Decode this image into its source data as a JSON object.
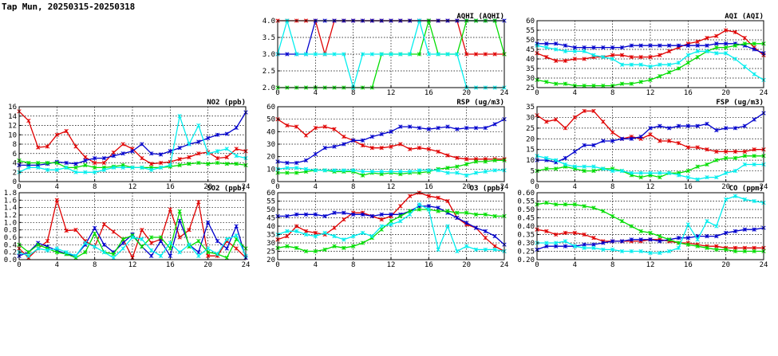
{
  "title": "Tap Mun, 20250315-20250318",
  "colors": {
    "red": "#e00000",
    "blue": "#0000cc",
    "green": "#00dd00",
    "cyan": "#00eeee"
  },
  "chart_data": [
    {
      "type": "line",
      "id": "no2",
      "title": "NO2 (ppb)",
      "xlim": [
        0,
        24
      ],
      "xticks": [
        0,
        4,
        8,
        12,
        16,
        20,
        24
      ],
      "ylim": [
        0,
        16
      ],
      "yticks": [
        0,
        2,
        4,
        6,
        8,
        10,
        12,
        14,
        16
      ],
      "grid": true,
      "series": [
        {
          "color": "red",
          "values": [
            15.0,
            13.0,
            7.3,
            7.5,
            10.0,
            10.8,
            7.5,
            5.2,
            4.0,
            4.0,
            6.2,
            8.0,
            7.0,
            5.0,
            3.8,
            4.0,
            4.2,
            4.8,
            5.2,
            6.0,
            6.3,
            5.0,
            5.2,
            7.0,
            6.5
          ]
        },
        {
          "color": "blue",
          "values": [
            3.5,
            3.5,
            3.5,
            3.8,
            4.2,
            4.0,
            3.8,
            4.5,
            5.0,
            5.0,
            5.5,
            6.0,
            6.5,
            8.0,
            6.0,
            5.8,
            6.5,
            7.2,
            8.0,
            8.5,
            9.3,
            10.0,
            10.2,
            11.5,
            14.8
          ]
        },
        {
          "color": "green",
          "values": [
            4.5,
            4.0,
            4.0,
            4.0,
            4.0,
            3.0,
            3.0,
            3.5,
            3.0,
            3.0,
            3.2,
            3.5,
            3.0,
            3.0,
            3.0,
            3.0,
            3.2,
            3.5,
            3.8,
            4.0,
            3.8,
            4.0,
            3.8,
            3.8,
            3.5
          ]
        },
        {
          "color": "cyan",
          "values": [
            2.0,
            3.0,
            3.0,
            2.5,
            2.5,
            3.0,
            2.0,
            2.0,
            2.0,
            2.5,
            3.0,
            3.0,
            3.0,
            3.0,
            2.5,
            3.0,
            3.5,
            14.0,
            8.0,
            12.0,
            6.0,
            6.5,
            7.0,
            5.5,
            5.0
          ]
        }
      ]
    },
    {
      "type": "line",
      "id": "so2",
      "title": "SO2 (ppb)",
      "xlim": [
        0,
        24
      ],
      "xticks": [
        0,
        4,
        8,
        12,
        16,
        20,
        24
      ],
      "ylim": [
        0,
        1.8
      ],
      "yticks": [
        0,
        0.2,
        0.4,
        0.6,
        0.8,
        1.0,
        1.2,
        1.4,
        1.6,
        1.8
      ],
      "grid": true,
      "series": [
        {
          "color": "red",
          "values": [
            0.3,
            0.05,
            0.3,
            0.5,
            1.6,
            0.78,
            0.8,
            0.5,
            0.35,
            0.95,
            0.75,
            0.55,
            0.05,
            0.8,
            0.45,
            0.55,
            1.35,
            0.6,
            0.8,
            1.55,
            0.1,
            0.1,
            0.5,
            0.3,
            0.05
          ]
        },
        {
          "color": "blue",
          "values": [
            0.1,
            0.2,
            0.45,
            0.35,
            0.25,
            0.15,
            0.1,
            0.4,
            0.85,
            0.4,
            0.2,
            0.45,
            0.68,
            0.35,
            0.1,
            0.5,
            0.1,
            1.05,
            0.4,
            0.2,
            1.0,
            0.5,
            0.3,
            0.9,
            0.05
          ]
        },
        {
          "color": "green",
          "values": [
            0.4,
            0.2,
            0.4,
            0.3,
            0.2,
            0.15,
            0.05,
            0.2,
            0.7,
            0.2,
            0.15,
            0.55,
            0.65,
            0.35,
            0.6,
            0.6,
            0.3,
            1.3,
            0.35,
            0.5,
            0.2,
            0.15,
            0.05,
            0.55,
            0.3
          ]
        },
        {
          "color": "cyan",
          "values": [
            0.2,
            0.1,
            0.3,
            0.25,
            0.3,
            0.2,
            0.1,
            0.45,
            0.35,
            0.2,
            0.05,
            0.3,
            0.6,
            0.55,
            0.25,
            0.1,
            0.45,
            0.2,
            0.4,
            0.1,
            0.3,
            0.15,
            0.55,
            0.65,
            0.1
          ]
        }
      ]
    },
    {
      "type": "line",
      "id": "aqhi",
      "title": "AQHI (AQHI)",
      "xlim": [
        0,
        24
      ],
      "xticks": [
        0,
        4,
        8,
        12,
        16,
        20,
        24
      ],
      "ylim": [
        2,
        4
      ],
      "yticks": [
        2.0,
        2.5,
        3.0,
        3.5,
        4.0
      ],
      "grid": true,
      "series": [
        {
          "color": "red",
          "values": [
            4,
            4,
            4,
            4,
            4,
            3,
            4,
            4,
            4,
            4,
            4,
            4,
            4,
            4,
            4,
            4,
            4,
            4,
            4,
            4,
            3,
            3,
            3,
            3,
            3
          ]
        },
        {
          "color": "blue",
          "values": [
            3,
            3,
            3,
            3,
            4,
            4,
            4,
            4,
            4,
            4,
            4,
            4,
            4,
            4,
            4,
            4,
            4,
            4,
            4,
            4,
            4,
            4,
            4,
            4,
            4
          ]
        },
        {
          "color": "green",
          "values": [
            2,
            2,
            2,
            2,
            2,
            2,
            2,
            2,
            2,
            2,
            2,
            3,
            3,
            3,
            3,
            3,
            4,
            3,
            3,
            3,
            4,
            4,
            4,
            4,
            3
          ]
        },
        {
          "color": "cyan",
          "values": [
            3,
            4,
            3,
            3,
            3,
            3,
            3,
            3,
            2,
            3,
            3,
            3,
            3,
            3,
            3,
            4,
            3,
            3,
            3,
            3,
            2,
            2,
            2,
            2,
            2
          ]
        }
      ]
    },
    {
      "type": "line",
      "id": "rsp",
      "title": "RSP (ug/m3)",
      "xlim": [
        0,
        24
      ],
      "xticks": [
        0,
        4,
        8,
        12,
        16,
        20,
        24
      ],
      "ylim": [
        0,
        60
      ],
      "yticks": [
        0,
        10,
        20,
        30,
        40,
        50,
        60
      ],
      "grid": true,
      "series": [
        {
          "color": "red",
          "values": [
            50,
            45,
            44,
            37,
            43,
            44,
            42,
            36,
            33,
            29,
            27,
            27,
            28,
            30,
            26,
            27,
            26,
            24,
            21,
            19,
            18,
            18,
            18,
            18,
            18
          ]
        },
        {
          "color": "blue",
          "values": [
            16,
            15,
            15,
            17,
            22,
            27,
            28,
            30,
            33,
            33,
            36,
            38,
            40,
            44,
            44,
            43,
            42,
            43,
            44,
            42,
            43,
            43,
            43,
            46,
            50
          ]
        },
        {
          "color": "green",
          "values": [
            7,
            7,
            7,
            8,
            9,
            9,
            8,
            8,
            8,
            5,
            7,
            6,
            7,
            6,
            7,
            7,
            8,
            10,
            11,
            12,
            14,
            16,
            16,
            17,
            17
          ]
        },
        {
          "color": "cyan",
          "values": [
            10,
            11,
            11,
            10,
            9,
            9,
            9,
            9,
            9,
            8,
            8,
            8,
            8,
            8,
            8,
            9,
            9,
            9,
            7,
            7,
            5,
            7,
            8,
            9,
            9
          ]
        }
      ]
    },
    {
      "type": "line",
      "id": "o3",
      "title": "O3 (ppb)",
      "xlim": [
        0,
        24
      ],
      "xticks": [
        0,
        4,
        8,
        12,
        16,
        20,
        24
      ],
      "ylim": [
        20,
        60
      ],
      "yticks": [
        20,
        25,
        30,
        35,
        40,
        45,
        50,
        55,
        60
      ],
      "grid": true,
      "series": [
        {
          "color": "red",
          "values": [
            32,
            34,
            40,
            37,
            36,
            35,
            39,
            44,
            48,
            48,
            46,
            44,
            46,
            52,
            58,
            60,
            58,
            57,
            55,
            45,
            41,
            39,
            33,
            28,
            25
          ]
        },
        {
          "color": "blue",
          "values": [
            46,
            46,
            47,
            47,
            47,
            46,
            48,
            48,
            47,
            47,
            46,
            47,
            47,
            47,
            49,
            52,
            52,
            51,
            48,
            45,
            42,
            39,
            37,
            34,
            29
          ]
        },
        {
          "color": "green",
          "values": [
            27,
            28,
            27,
            25,
            25,
            26,
            28,
            27,
            28,
            30,
            33,
            38,
            43,
            46,
            49,
            50,
            50,
            49,
            49,
            48,
            48,
            47,
            47,
            46,
            46
          ]
        },
        {
          "color": "cyan",
          "values": [
            35,
            37,
            37,
            35,
            34,
            36,
            34,
            32,
            34,
            36,
            34,
            40,
            41,
            43,
            47,
            53,
            50,
            26,
            40,
            25,
            28,
            26,
            26,
            26,
            25
          ]
        }
      ]
    },
    {
      "type": "line",
      "id": "aqi",
      "title": "AQI (AQI)",
      "xlim": [
        0,
        24
      ],
      "xticks": [
        0,
        4,
        8,
        12,
        16,
        20,
        24
      ],
      "ylim": [
        25,
        60
      ],
      "yticks": [
        25,
        30,
        35,
        40,
        45,
        50,
        55,
        60
      ],
      "grid": true,
      "series": [
        {
          "color": "red",
          "values": [
            43,
            41,
            39,
            39,
            40,
            40,
            41,
            41,
            42,
            42,
            41,
            41,
            41,
            42,
            44,
            46,
            48,
            49,
            51,
            52,
            55,
            54,
            51,
            46,
            42
          ]
        },
        {
          "color": "blue",
          "values": [
            48,
            48,
            48,
            47,
            46,
            46,
            46,
            46,
            46,
            46,
            47,
            47,
            47,
            47,
            47,
            47,
            47,
            47,
            47,
            48,
            48,
            48,
            47,
            45,
            43
          ]
        },
        {
          "color": "green",
          "values": [
            29,
            28,
            27,
            27,
            26,
            26,
            26,
            26,
            26,
            27,
            27,
            28,
            29,
            31,
            33,
            35,
            38,
            41,
            44,
            46,
            46,
            47,
            48,
            48,
            48
          ]
        },
        {
          "color": "cyan",
          "values": [
            47,
            46,
            45,
            44,
            44,
            44,
            42,
            41,
            40,
            37,
            37,
            37,
            36,
            37,
            37,
            38,
            42,
            44,
            44,
            43,
            43,
            40,
            36,
            32,
            29
          ]
        }
      ]
    },
    {
      "type": "line",
      "id": "fsp",
      "title": "FSP (ug/m3)",
      "xlim": [
        0,
        24
      ],
      "xticks": [
        0,
        4,
        8,
        12,
        16,
        20,
        24
      ],
      "ylim": [
        0,
        35
      ],
      "yticks": [
        0,
        5,
        10,
        15,
        20,
        25,
        30,
        35
      ],
      "grid": true,
      "series": [
        {
          "color": "red",
          "values": [
            31,
            28,
            29,
            25,
            30,
            33,
            33,
            28,
            23,
            20,
            21,
            20,
            22,
            19,
            19,
            18,
            16,
            16,
            15,
            14,
            14,
            14,
            14,
            15,
            15
          ]
        },
        {
          "color": "blue",
          "values": [
            10,
            10,
            9,
            11,
            14,
            17,
            17,
            19,
            19,
            20,
            20,
            21,
            25,
            26,
            25,
            26,
            26,
            26,
            27,
            24,
            25,
            25,
            26,
            29,
            32
          ]
        },
        {
          "color": "green",
          "values": [
            5,
            6,
            6,
            7,
            6,
            5,
            5,
            6,
            6,
            5,
            3,
            2,
            3,
            2,
            4,
            4,
            5,
            7,
            8,
            10,
            11,
            11,
            12,
            12,
            12
          ]
        },
        {
          "color": "cyan",
          "values": [
            12,
            11,
            10,
            8,
            7,
            7,
            7,
            6,
            5,
            5,
            4,
            4,
            4,
            4,
            4,
            3,
            2,
            1,
            2,
            2,
            4,
            5,
            8,
            8,
            8
          ]
        }
      ]
    },
    {
      "type": "line",
      "id": "co",
      "title": "CO (ppm)",
      "xlim": [
        0,
        24
      ],
      "xticks": [
        0,
        4,
        8,
        12,
        16,
        20,
        24
      ],
      "ylim": [
        0.2,
        0.6
      ],
      "yticks": [
        0.2,
        0.25,
        0.3,
        0.35,
        0.4,
        0.45,
        0.5,
        0.55,
        0.6
      ],
      "grid": true,
      "series": [
        {
          "color": "red",
          "values": [
            0.38,
            0.37,
            0.35,
            0.36,
            0.36,
            0.35,
            0.33,
            0.31,
            0.31,
            0.31,
            0.31,
            0.31,
            0.32,
            0.32,
            0.31,
            0.3,
            0.3,
            0.29,
            0.28,
            0.28,
            0.27,
            0.27,
            0.27,
            0.27,
            0.27
          ]
        },
        {
          "color": "blue",
          "values": [
            0.26,
            0.28,
            0.28,
            0.28,
            0.28,
            0.29,
            0.29,
            0.3,
            0.31,
            0.31,
            0.32,
            0.32,
            0.32,
            0.31,
            0.32,
            0.33,
            0.33,
            0.34,
            0.34,
            0.34,
            0.36,
            0.37,
            0.38,
            0.38,
            0.39
          ]
        },
        {
          "color": "green",
          "values": [
            0.53,
            0.54,
            0.53,
            0.53,
            0.53,
            0.52,
            0.51,
            0.49,
            0.46,
            0.43,
            0.4,
            0.37,
            0.36,
            0.34,
            0.32,
            0.3,
            0.29,
            0.28,
            0.27,
            0.26,
            0.26,
            0.25,
            0.25,
            0.25,
            0.25
          ]
        },
        {
          "color": "cyan",
          "values": [
            0.3,
            0.3,
            0.3,
            0.31,
            0.28,
            0.27,
            0.27,
            0.26,
            0.26,
            0.25,
            0.25,
            0.25,
            0.24,
            0.24,
            0.25,
            0.27,
            0.41,
            0.32,
            0.43,
            0.4,
            0.56,
            0.58,
            0.56,
            0.55,
            0.54
          ]
        }
      ]
    }
  ]
}
